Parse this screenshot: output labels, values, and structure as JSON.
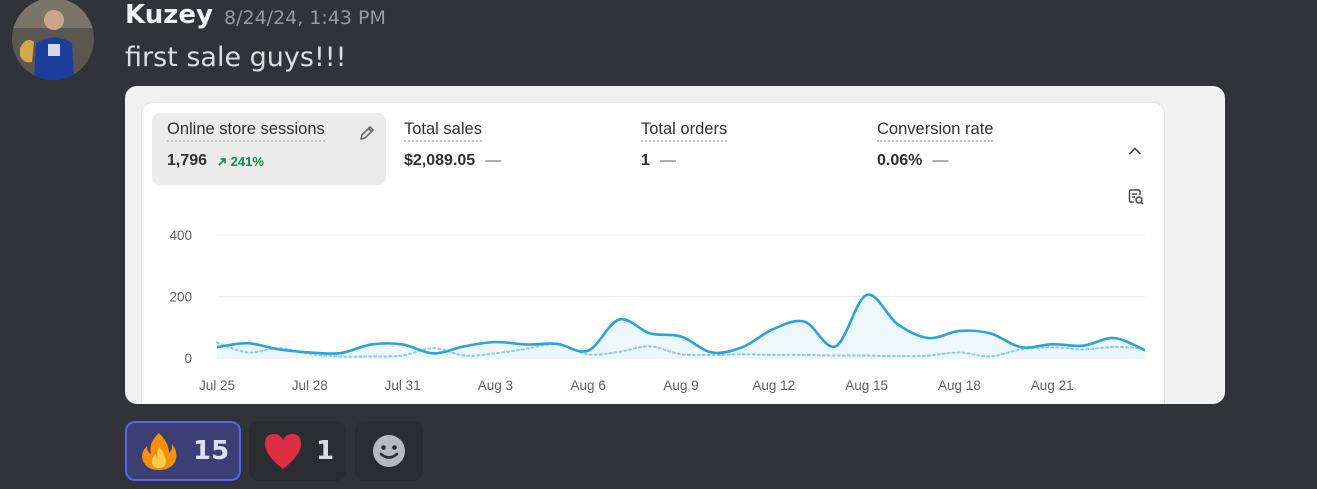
{
  "message": {
    "username": "Kuzey",
    "timestamp": "8/24/24, 1:43 PM",
    "text": "first sale guys!!!"
  },
  "metrics": [
    {
      "label": "Online store sessions",
      "value": "1,796",
      "change": "241%",
      "change_icon": "arrow-up-right",
      "active": true
    },
    {
      "label": "Total sales",
      "value": "$2,089.05",
      "dash": "—"
    },
    {
      "label": "Total orders",
      "value": "1",
      "dash": "—"
    },
    {
      "label": "Conversion rate",
      "value": "0.06%",
      "dash": "—"
    }
  ],
  "chart_data": {
    "type": "line",
    "x_labels": [
      "Jul 25",
      "Jul 28",
      "Jul 31",
      "Aug 3",
      "Aug 6",
      "Aug 9",
      "Aug 12",
      "Aug 15",
      "Aug 18",
      "Aug 21"
    ],
    "y_ticks": [
      0,
      200,
      400
    ],
    "ylim": [
      0,
      400
    ],
    "grid": true,
    "series": [
      {
        "style": "solid",
        "color": "#2aa3dc",
        "values": [
          35,
          48,
          28,
          18,
          16,
          44,
          44,
          15,
          38,
          52,
          44,
          46,
          24,
          125,
          80,
          70,
          18,
          36,
          95,
          118,
          38,
          205,
          110,
          65,
          88,
          80,
          35,
          45,
          40,
          65,
          25
        ]
      },
      {
        "style": "dotted",
        "color": "#89cbee",
        "values": [
          50,
          18,
          32,
          13,
          5,
          5,
          8,
          32,
          8,
          15,
          30,
          45,
          12,
          20,
          38,
          12,
          10,
          12,
          10,
          10,
          8,
          8,
          6,
          8,
          18,
          5,
          28,
          35,
          28,
          36,
          30
        ]
      }
    ]
  },
  "reactions": [
    {
      "emoji": "fire",
      "count": "15",
      "me": true
    },
    {
      "emoji": "red-heart",
      "count": "1",
      "me": false
    }
  ],
  "colors": {
    "background": "#313338",
    "username": "#f2f3f5",
    "timestamp": "#949ba4",
    "positive_change": "#0c8a4a",
    "reaction_selected_border": "#5865f2"
  }
}
